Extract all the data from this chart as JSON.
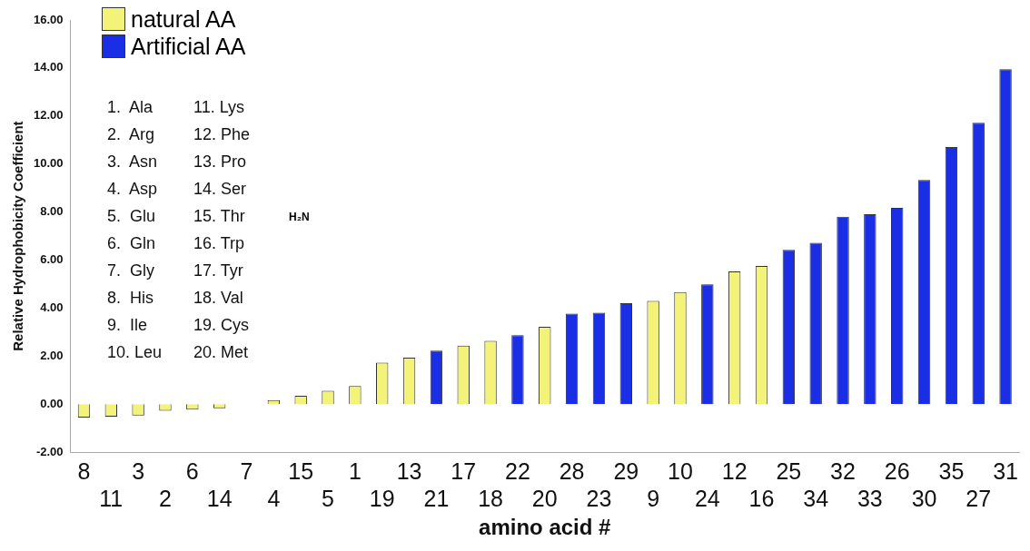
{
  "chart_data": {
    "type": "bar",
    "xlabel": "amino acid #",
    "ylabel": "Relative Hydrophobicity Coefficient",
    "categories": [
      "8",
      "11",
      "3",
      "2",
      "6",
      "14",
      "7",
      "4",
      "15",
      "5",
      "1",
      "19",
      "13",
      "21",
      "17",
      "18",
      "22",
      "20",
      "28",
      "23",
      "29",
      "9",
      "10",
      "24",
      "12",
      "16",
      "25",
      "34",
      "32",
      "33",
      "26",
      "30",
      "35",
      "27",
      "31"
    ],
    "series": [
      {
        "name": "natural AA",
        "color": "#f3f37a",
        "values": [
          -0.56,
          -0.52,
          -0.47,
          -0.27,
          -0.23,
          -0.17,
          0,
          0.17,
          0.35,
          0.56,
          0.76,
          1.73,
          1.94,
          null,
          2.44,
          2.64,
          null,
          3.22,
          null,
          null,
          null,
          4.3,
          4.67,
          null,
          5.53,
          5.76,
          null,
          null,
          null,
          null,
          null,
          null,
          null,
          null,
          null
        ]
      },
      {
        "name": "Artificial AA",
        "color": "#1a2ee6",
        "values": [
          null,
          null,
          null,
          null,
          null,
          null,
          null,
          null,
          null,
          null,
          null,
          null,
          null,
          2.23,
          null,
          null,
          2.87,
          null,
          3.77,
          3.81,
          4.21,
          null,
          null,
          4.99,
          null,
          null,
          6.43,
          6.72,
          7.81,
          7.91,
          8.18,
          9.34,
          10.71,
          11.72,
          13.95
        ]
      }
    ],
    "ylim": [
      -2,
      16
    ],
    "yticks": [
      {
        "value": -2,
        "label": "-2.00"
      },
      {
        "value": 0,
        "label": "0.00"
      },
      {
        "value": 2,
        "label": "2.00"
      },
      {
        "value": 4,
        "label": "4.00"
      },
      {
        "value": 6,
        "label": "6.00"
      },
      {
        "value": 8,
        "label": "8.00"
      },
      {
        "value": 10,
        "label": "10.00"
      },
      {
        "value": 12,
        "label": "12.00"
      },
      {
        "value": 14,
        "label": "14.00"
      },
      {
        "value": 16,
        "label": "16.00"
      }
    ],
    "grid": false,
    "legend": "top left",
    "annotations": [
      "1.  Ala",
      "2.  Arg",
      "3.  Asn",
      "4.  Asp",
      "5.  Glu",
      "6.  Gln",
      "7.  Gly",
      "8.  His",
      "9.  Ile",
      "10. Leu",
      "11. Lys",
      "12. Phe",
      "13. Pro",
      "14. Ser",
      "15. Thr",
      "16. Trp",
      "17. Tyr",
      "18. Val",
      "19. Cys",
      "20. Met",
      "H₂N"
    ]
  }
}
